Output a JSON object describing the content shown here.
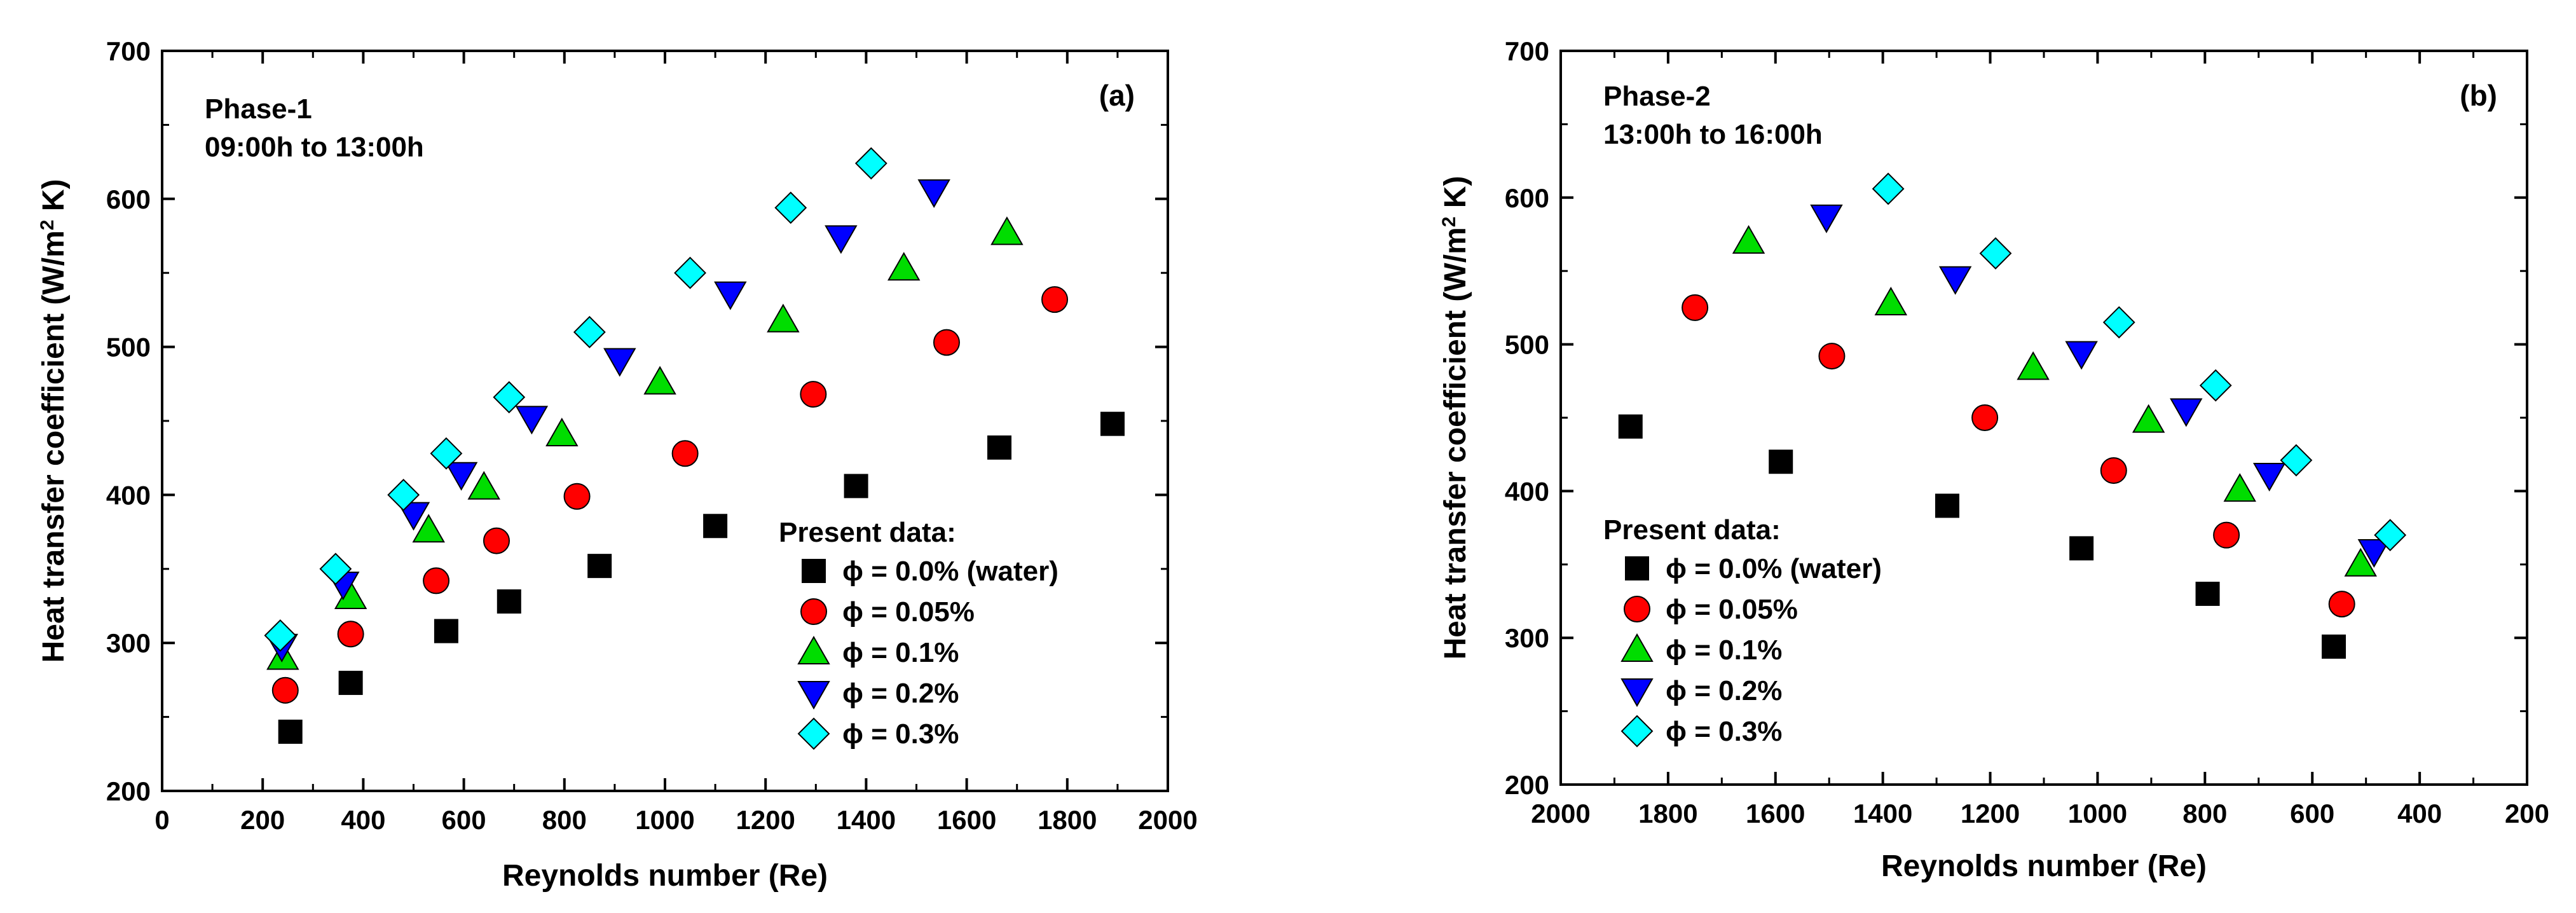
{
  "colors": {
    "water": "#000000",
    "phi005": "#ff0000",
    "phi01": "#00dd00",
    "phi02": "#0000ff",
    "phi03": "#00ffff"
  },
  "chart_data": [
    {
      "type": "scatter",
      "panel_label": "(a)",
      "phase_title": "Phase-1",
      "phase_time": "09:00h to 13:00h",
      "xlabel": "Reynolds number (Re)",
      "ylabel": "Heat transfer coefficient (W/m² K)",
      "xlim": [
        0,
        2000
      ],
      "ylim": [
        200,
        700
      ],
      "x_reversed": false,
      "xticks": [
        0,
        200,
        400,
        600,
        800,
        1000,
        1200,
        1400,
        1600,
        1800,
        2000
      ],
      "yticks": [
        200,
        300,
        400,
        500,
        600,
        700
      ],
      "legend_title": "Present data:",
      "legend_position": "bottom-right",
      "series": [
        {
          "name": "ϕ = 0.0% (water)",
          "marker": "square",
          "color": "#000000",
          "x": [
            255,
            375,
            565,
            690,
            870,
            1100,
            1380,
            1665,
            1890
          ],
          "y": [
            240,
            273,
            308,
            328,
            352,
            379,
            406,
            432,
            448
          ]
        },
        {
          "name": "ϕ = 0.05%",
          "marker": "circle",
          "color": "#ff0000",
          "x": [
            245,
            375,
            545,
            665,
            825,
            1040,
            1295,
            1560,
            1775
          ],
          "y": [
            268,
            306,
            342,
            369,
            399,
            428,
            468,
            503,
            532
          ]
        },
        {
          "name": "ϕ = 0.1%",
          "marker": "triangle-up",
          "color": "#00dd00",
          "x": [
            240,
            375,
            530,
            640,
            795,
            990,
            1235,
            1475,
            1680
          ],
          "y": [
            290,
            331,
            376,
            405,
            441,
            476,
            518,
            553,
            577
          ]
        },
        {
          "name": "ϕ = 0.2%",
          "marker": "triangle-down",
          "color": "#0000ff",
          "x": [
            238,
            360,
            500,
            595,
            735,
            910,
            1130,
            1350,
            1535
          ],
          "y": [
            298,
            340,
            387,
            414,
            452,
            491,
            536,
            574,
            605
          ]
        },
        {
          "name": "ϕ = 0.3%",
          "marker": "diamond",
          "color": "#00ffff",
          "x": [
            235,
            345,
            480,
            565,
            690,
            850,
            1050,
            1250,
            1410
          ],
          "y": [
            305,
            350,
            400,
            428,
            466,
            510,
            550,
            594,
            624
          ]
        }
      ]
    },
    {
      "type": "scatter",
      "panel_label": "(b)",
      "phase_title": "Phase-2",
      "phase_time": "13:00h to 16:00h",
      "xlabel": "Reynolds number (Re)",
      "ylabel": "Heat transfer coefficient (W/m² K)",
      "xlim": [
        2000,
        200
      ],
      "ylim": [
        200,
        700
      ],
      "x_reversed": true,
      "xticks": [
        2000,
        1800,
        1600,
        1400,
        1200,
        1000,
        800,
        600,
        400,
        200
      ],
      "yticks": [
        200,
        300,
        400,
        500,
        600,
        700
      ],
      "legend_title": "Present data:",
      "legend_position": "bottom-left",
      "series": [
        {
          "name": "ϕ = 0.0% (water)",
          "marker": "square",
          "color": "#000000",
          "x": [
            1870,
            1590,
            1280,
            1030,
            795,
            560
          ],
          "y": [
            444,
            420,
            390,
            361,
            330,
            294
          ]
        },
        {
          "name": "ϕ = 0.05%",
          "marker": "circle",
          "color": "#ff0000",
          "x": [
            1750,
            1495,
            1210,
            970,
            760,
            545
          ],
          "y": [
            525,
            492,
            450,
            414,
            370,
            323
          ]
        },
        {
          "name": "ϕ = 0.1%",
          "marker": "triangle-up",
          "color": "#00dd00",
          "x": [
            1650,
            1385,
            1120,
            905,
            735,
            510
          ],
          "y": [
            570,
            528,
            484,
            448,
            401,
            350
          ]
        },
        {
          "name": "ϕ = 0.2%",
          "marker": "triangle-down",
          "color": "#0000ff",
          "x": [
            1505,
            1265,
            1030,
            835,
            680,
            485
          ],
          "y": [
            587,
            545,
            494,
            455,
            411,
            359
          ]
        },
        {
          "name": "ϕ = 0.3%",
          "marker": "diamond",
          "color": "#00ffff",
          "x": [
            1390,
            1190,
            960,
            780,
            630,
            455
          ],
          "y": [
            606,
            562,
            515,
            472,
            421,
            370
          ]
        }
      ]
    }
  ]
}
